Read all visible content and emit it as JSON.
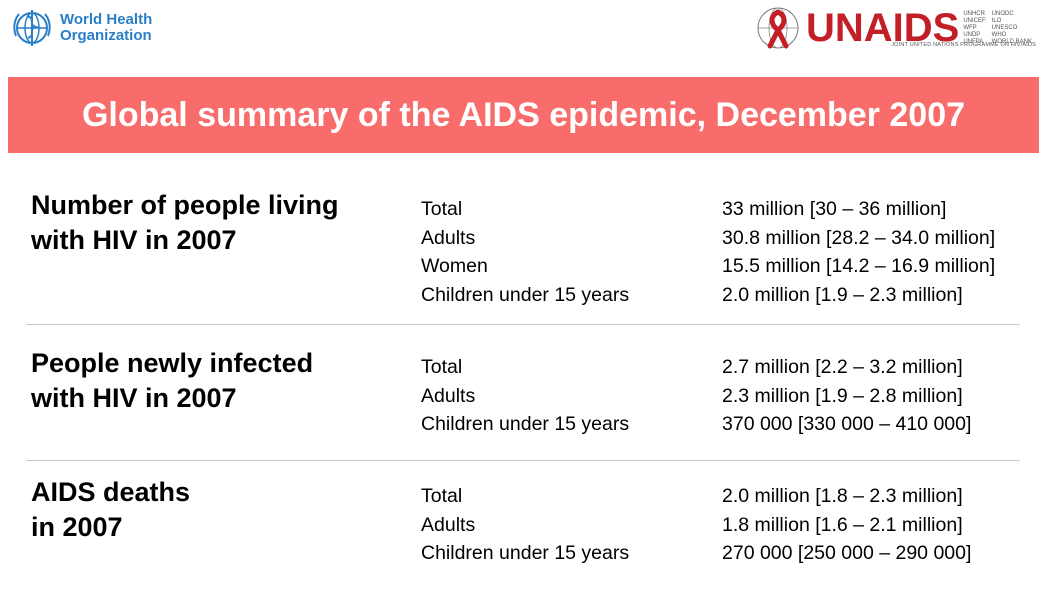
{
  "header": {
    "who_logo_text": [
      "World Health",
      "Organization"
    ],
    "unaids_logo_text": "UNAIDS",
    "unaids_partners_col1": [
      "UNHCR",
      "UNICEF",
      "WFP",
      "UNDP",
      "UNFPA"
    ],
    "unaids_partners_col2": [
      "UNODC",
      "ILO",
      "UNESCO",
      "WHO",
      "WORLD BANK"
    ],
    "unaids_subtitle": "JOINT UNITED NATIONS PROGRAMME ON HIV/AIDS"
  },
  "banner": {
    "title": "Global summary of the AIDS epidemic, December 2007",
    "color": "#f86c6b"
  },
  "sections": [
    {
      "title": "Number of people living\nwith HIV in 2007",
      "rows": [
        {
          "label": "Total",
          "value": "33 million [30 – 36 million]"
        },
        {
          "label": "Adults",
          "value": "30.8 million [28.2 – 34.0 million]"
        },
        {
          "label": "Women",
          "value": "15.5 million [14.2 – 16.9 million]"
        },
        {
          "label": "Children under 15 years",
          "value": "2.0 million [1.9 – 2.3 million]"
        }
      ]
    },
    {
      "title": "People newly infected\nwith HIV in 2007",
      "rows": [
        {
          "label": "Total",
          "value": "2.7 million [2.2 – 3.2 million]"
        },
        {
          "label": "Adults",
          "value": "2.3 million [1.9 – 2.8 million]"
        },
        {
          "label": "Children under 15 years",
          "value": "370 000 [330 000 – 410 000]"
        }
      ]
    },
    {
      "title": "AIDS deaths\nin 2007",
      "rows": [
        {
          "label": "Total",
          "value": "2.0 million [1.8 – 2.3 million]"
        },
        {
          "label": "Adults",
          "value": "1.8 million [1.6 – 2.1 million]"
        },
        {
          "label": "Children under 15 years",
          "value": "270 000 [250 000 – 290 000]"
        }
      ]
    }
  ]
}
